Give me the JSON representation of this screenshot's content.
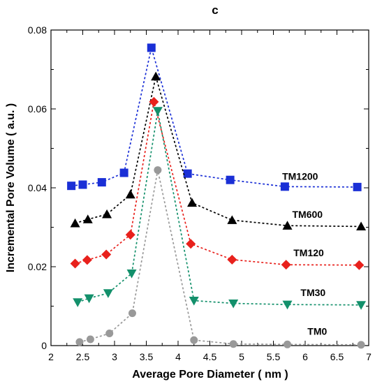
{
  "chart_data": {
    "type": "line",
    "title": "c",
    "xlabel": "Average Pore Diameter ( nm )",
    "ylabel": "Incremental Pore Volume ( a.u. )",
    "xlim": [
      2,
      7
    ],
    "ylim": [
      0,
      0.08
    ],
    "xticks": [
      "2",
      "2.5",
      "3",
      "3.5",
      "4",
      "4.5",
      "5",
      "5.5",
      "6",
      "6.5",
      "7"
    ],
    "yticks": [
      "0",
      "0.02",
      "0.04",
      "0.06",
      "0.08"
    ],
    "grid": false,
    "series": [
      {
        "name": "TM1200",
        "color": "#1a2fd6",
        "marker": "square",
        "x": [
          2.32,
          2.5,
          2.8,
          3.15,
          3.58,
          4.15,
          4.82,
          5.68,
          6.82
        ],
        "y": [
          0.0405,
          0.0408,
          0.0414,
          0.0438,
          0.0755,
          0.0436,
          0.042,
          0.0403,
          0.0402
        ]
      },
      {
        "name": "TM600",
        "color": "#000000",
        "marker": "triangle-up",
        "x": [
          2.38,
          2.58,
          2.88,
          3.25,
          3.65,
          4.22,
          4.85,
          5.72,
          6.88
        ],
        "y": [
          0.031,
          0.032,
          0.0333,
          0.0383,
          0.0682,
          0.0362,
          0.0318,
          0.0304,
          0.0302
        ]
      },
      {
        "name": "TM120",
        "color": "#e8211c",
        "marker": "diamond",
        "x": [
          2.38,
          2.57,
          2.87,
          3.25,
          3.62,
          4.2,
          4.85,
          5.7,
          6.85
        ],
        "y": [
          0.0208,
          0.0217,
          0.0231,
          0.0281,
          0.0618,
          0.0258,
          0.0218,
          0.0205,
          0.0204
        ]
      },
      {
        "name": "TM30",
        "color": "#13906b",
        "marker": "triangle-down",
        "x": [
          2.42,
          2.6,
          2.9,
          3.27,
          3.68,
          4.25,
          4.87,
          5.72,
          6.88
        ],
        "y": [
          0.011,
          0.012,
          0.0133,
          0.0183,
          0.0595,
          0.0114,
          0.0107,
          0.0104,
          0.0103
        ]
      },
      {
        "name": "TM0",
        "color": "#999999",
        "marker": "circle",
        "x": [
          2.45,
          2.62,
          2.92,
          3.28,
          3.68,
          4.25,
          4.87,
          5.72,
          6.88
        ],
        "y": [
          0.0009,
          0.0016,
          0.0031,
          0.0082,
          0.0445,
          0.0014,
          0.0004,
          0.0003,
          0.0002
        ]
      }
    ]
  }
}
